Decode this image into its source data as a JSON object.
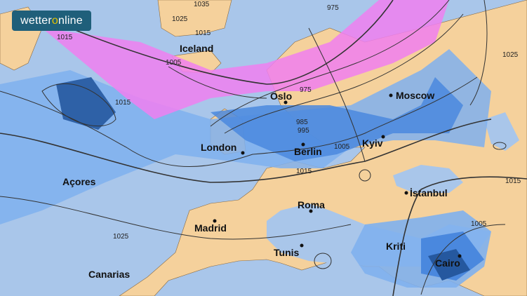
{
  "brand": {
    "name_part1": "wetter",
    "name_o": "o",
    "name_part2": "nline"
  },
  "colors": {
    "ocean": "#a9c6ea",
    "land": "#f5d19c",
    "rain_light": "#7fb0ee",
    "rain": "#4a88de",
    "rain_heavy": "#25589f",
    "snow": "#f07ff0",
    "isobar": "#333333"
  },
  "cities": [
    {
      "name": "Iceland",
      "dot": false
    },
    {
      "name": "Oslo",
      "dot": true
    },
    {
      "name": "Moscow",
      "dot": true
    },
    {
      "name": "London",
      "dot": true
    },
    {
      "name": "Berlin",
      "dot": true
    },
    {
      "name": "Kyiv",
      "dot": true
    },
    {
      "name": "Açores",
      "dot": false
    },
    {
      "name": "İstanbul",
      "dot": true
    },
    {
      "name": "Roma",
      "dot": true
    },
    {
      "name": "Madrid",
      "dot": true
    },
    {
      "name": "Tunis",
      "dot": true
    },
    {
      "name": "Kriti",
      "dot": false
    },
    {
      "name": "Cairo",
      "dot": true
    },
    {
      "name": "Canarias",
      "dot": false
    }
  ],
  "isobar_labels": [
    "1035",
    "1025",
    "1015",
    "975",
    "1015",
    "1005",
    "1015",
    "975",
    "985",
    "995",
    "1005",
    "1015",
    "1015",
    "1025",
    "1025",
    "1005"
  ]
}
